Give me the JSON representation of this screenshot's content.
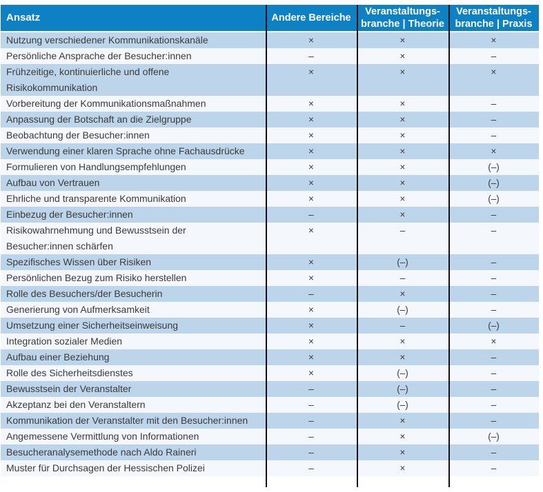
{
  "colors": {
    "header_bg": "#0d81c4",
    "header_text": "#ffffff",
    "row_odd_bg": "#bdd5ea",
    "row_even_bg": "#f4f7fb",
    "divider": "#111111",
    "body_text": "#3a3a3a"
  },
  "table": {
    "headers": [
      "Ansatz",
      "Andere Bereiche",
      "Veranstaltungs-\nbranche | Theorie",
      "Veranstaltungs-\nbranche | Praxis"
    ],
    "symbols": {
      "present": "×",
      "absent": "–",
      "partial": "(–)"
    },
    "rows": [
      [
        "Nutzung verschiedener Kommunikationskanäle",
        "×",
        "×",
        "×"
      ],
      [
        "Persönliche Ansprache der Besucher:innen",
        "–",
        "×",
        "–"
      ],
      [
        "Frühzeitige, kontinuierliche und offene\nRisikokommunikation",
        "×",
        "×",
        "×"
      ],
      [
        "Vorbereitung der Kommunikationsmaßnahmen",
        "×",
        "×",
        "–"
      ],
      [
        "Anpassung der Botschaft an die Zielgruppe",
        "×",
        "×",
        "–"
      ],
      [
        "Beobachtung der Besucher:innen",
        "×",
        "×",
        "–"
      ],
      [
        "Verwendung einer klaren Sprache ohne Fachausdrücke",
        "×",
        "×",
        "×"
      ],
      [
        "Formulieren von Handlungsempfehlungen",
        "×",
        "×",
        "(–)"
      ],
      [
        "Aufbau von Vertrauen",
        "×",
        "×",
        "(–)"
      ],
      [
        "Ehrliche und transparente Kommunikation",
        "×",
        "×",
        "(–)"
      ],
      [
        "Einbezug der Besucher:innen",
        "–",
        "×",
        "–"
      ],
      [
        "Risikowahrnehmung und Bewusstsein der\nBesucher:innen schärfen",
        "×",
        "–",
        "–"
      ],
      [
        "Spezifisches Wissen über Risiken",
        "×",
        "(–)",
        "–"
      ],
      [
        "Persönlichen Bezug zum Risiko herstellen",
        "×",
        "–",
        "–"
      ],
      [
        "Rolle des Besuchers/der Besucherin",
        "–",
        "×",
        "–"
      ],
      [
        "Generierung von Aufmerksamkeit",
        "×",
        "(–)",
        "–"
      ],
      [
        "Umsetzung einer Sicherheitseinweisung",
        "×",
        "–",
        "(–)"
      ],
      [
        "Integration sozialer Medien",
        "×",
        "×",
        "×"
      ],
      [
        "Aufbau einer Beziehung",
        "×",
        "×",
        "–"
      ],
      [
        "Rolle des Sicherheitsdienstes",
        "×",
        "(–)",
        "–"
      ],
      [
        "Bewusstsein der Veranstalter",
        "–",
        "(–)",
        "–"
      ],
      [
        "Akzeptanz bei den Veranstaltern",
        "–",
        "(–)",
        "–"
      ],
      [
        "Kommunikation der Veranstalter mit den Besucher:innen",
        "–",
        "×",
        "–"
      ],
      [
        "Angemessene Vermittlung von Informationen",
        "–",
        "×",
        "(–)"
      ],
      [
        "Besucheranalysemethode nach Aldo Raineri",
        "–",
        "×",
        "–"
      ],
      [
        "Muster für Durchsagen der Hessischen Polizei",
        "–",
        "×",
        "–"
      ]
    ]
  }
}
